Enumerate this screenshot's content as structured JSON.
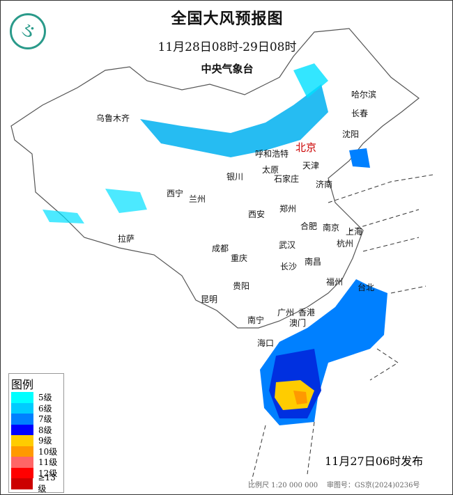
{
  "header": {
    "title": "全国大风预报图",
    "period": "11月28日08时-29日08时",
    "issuer": "中央气象台"
  },
  "capital": "北京",
  "cities": [
    "乌鲁木齐",
    "哈尔滨",
    "长春",
    "沈阳",
    "呼和浩特",
    "天津",
    "银川",
    "太原",
    "石家庄",
    "济南",
    "西宁",
    "兰州",
    "郑州",
    "西安",
    "合肥",
    "南京",
    "上海",
    "拉萨",
    "成都",
    "武汉",
    "杭州",
    "重庆",
    "南昌",
    "长沙",
    "福州",
    "台北",
    "贵阳",
    "昆明",
    "广州",
    "香港",
    "澳门",
    "南宁",
    "海口"
  ],
  "legend": {
    "title": "图例",
    "items": [
      {
        "label": "5级",
        "color": "#00ffff"
      },
      {
        "label": "6级",
        "color": "#00ccff"
      },
      {
        "label": "7级",
        "color": "#0080ff"
      },
      {
        "label": "8级",
        "color": "#0000ff"
      },
      {
        "label": "9级",
        "color": "#ffcc00"
      },
      {
        "label": "10级",
        "color": "#ff9900"
      },
      {
        "label": "11级",
        "color": "#ff6666"
      },
      {
        "label": "12级",
        "color": "#ff0000"
      },
      {
        "label": "≥13级",
        "color": "#cc0000"
      }
    ]
  },
  "footer": {
    "issued": "11月27日06时发布",
    "scale": "比例尺 1:20 000 000",
    "approval": "审图号：GS京(2024)0236号"
  }
}
